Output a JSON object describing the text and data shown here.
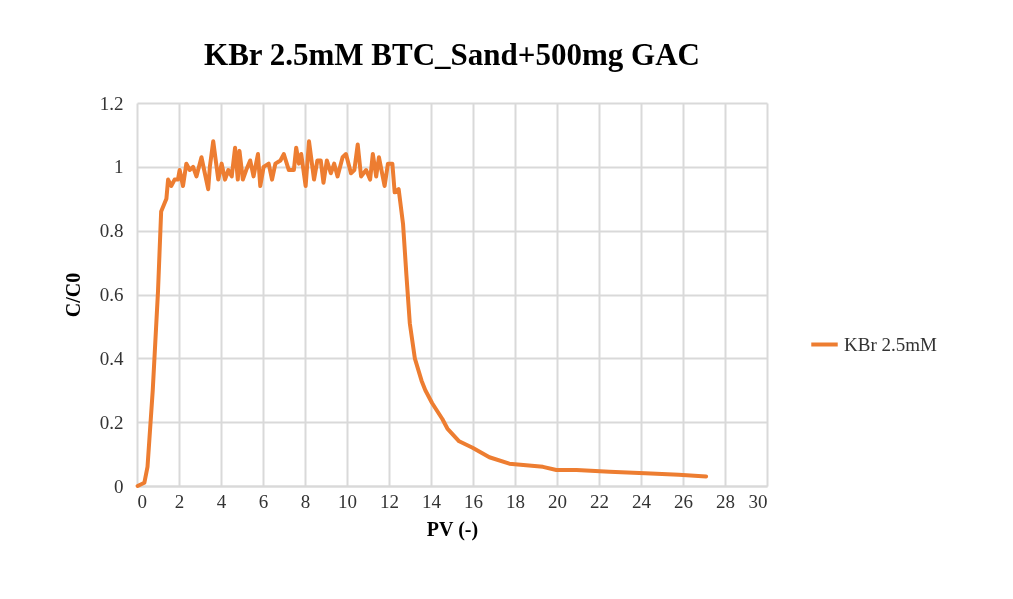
{
  "chart_data": {
    "type": "line",
    "title": "KBr 2.5mM BTC_Sand+500mg GAC",
    "xlabel": "PV (-)",
    "ylabel": "C/C0",
    "xlim": [
      0,
      30
    ],
    "xticks": [
      0,
      2,
      4,
      6,
      8,
      10,
      12,
      14,
      16,
      18,
      20,
      22,
      24,
      26,
      28,
      30
    ],
    "ylim": [
      0,
      1.2
    ],
    "yticks": [
      0,
      0.2,
      0.4,
      0.6,
      0.8,
      1,
      1.2
    ],
    "grid": true,
    "legend": "right",
    "marker": "none",
    "line_style": "solid",
    "series": [
      {
        "name": "KBr 2.5mM",
        "color": "#ed7d31",
        "x": [
          0.03,
          0.35,
          0.5,
          0.75,
          1.0,
          1.15,
          1.4,
          1.48,
          1.63,
          1.79,
          1.95,
          2.03,
          2.19,
          2.35,
          2.51,
          2.67,
          2.83,
          3.07,
          3.23,
          3.39,
          3.47,
          3.63,
          3.87,
          4.03,
          4.19,
          4.35,
          4.51,
          4.67,
          4.8,
          4.88,
          5.04,
          5.2,
          5.39,
          5.55,
          5.76,
          5.87,
          6.03,
          6.27,
          6.43,
          6.59,
          6.83,
          6.99,
          7.23,
          7.47,
          7.58,
          7.71,
          7.82,
          8.03,
          8.19,
          8.43,
          8.59,
          8.75,
          8.88,
          9.04,
          9.23,
          9.39,
          9.55,
          9.79,
          9.95,
          10.19,
          10.35,
          10.51,
          10.67,
          10.91,
          11.1,
          11.23,
          11.39,
          11.52,
          11.79,
          11.95,
          12.16,
          12.27,
          12.46,
          12.67,
          12.83,
          12.99,
          13.23,
          13.55,
          13.73,
          14.05,
          14.54,
          14.78,
          15.34,
          15.98,
          16.78,
          17.73,
          18.53,
          19.33,
          19.97,
          20.93,
          22.5,
          24.2,
          25.8,
          27.1
        ],
        "values": [
          0,
          0.01,
          0.06,
          0.3,
          0.61,
          0.86,
          0.9,
          0.96,
          0.94,
          0.96,
          0.96,
          0.99,
          0.94,
          1.01,
          0.99,
          1.0,
          0.97,
          1.03,
          0.98,
          0.93,
          1.0,
          1.08,
          0.96,
          1.01,
          0.96,
          0.99,
          0.97,
          1.06,
          0.96,
          1.05,
          0.96,
          0.99,
          1.02,
          0.97,
          1.04,
          0.94,
          1.0,
          1.01,
          0.96,
          1.01,
          1.02,
          1.04,
          0.99,
          0.99,
          1.06,
          1.01,
          1.04,
          0.94,
          1.08,
          0.96,
          1.02,
          1.02,
          0.95,
          1.02,
          0.98,
          1.01,
          0.97,
          1.03,
          1.04,
          0.98,
          0.99,
          1.07,
          0.97,
          0.99,
          0.96,
          1.04,
          0.97,
          1.03,
          0.94,
          1.01,
          1.01,
          0.92,
          0.93,
          0.82,
          0.66,
          0.51,
          0.4,
          0.33,
          0.3,
          0.26,
          0.21,
          0.18,
          0.14,
          0.12,
          0.09,
          0.07,
          0.065,
          0.06,
          0.05,
          0.05,
          0.045,
          0.04,
          0.035,
          0.03
        ]
      }
    ]
  }
}
